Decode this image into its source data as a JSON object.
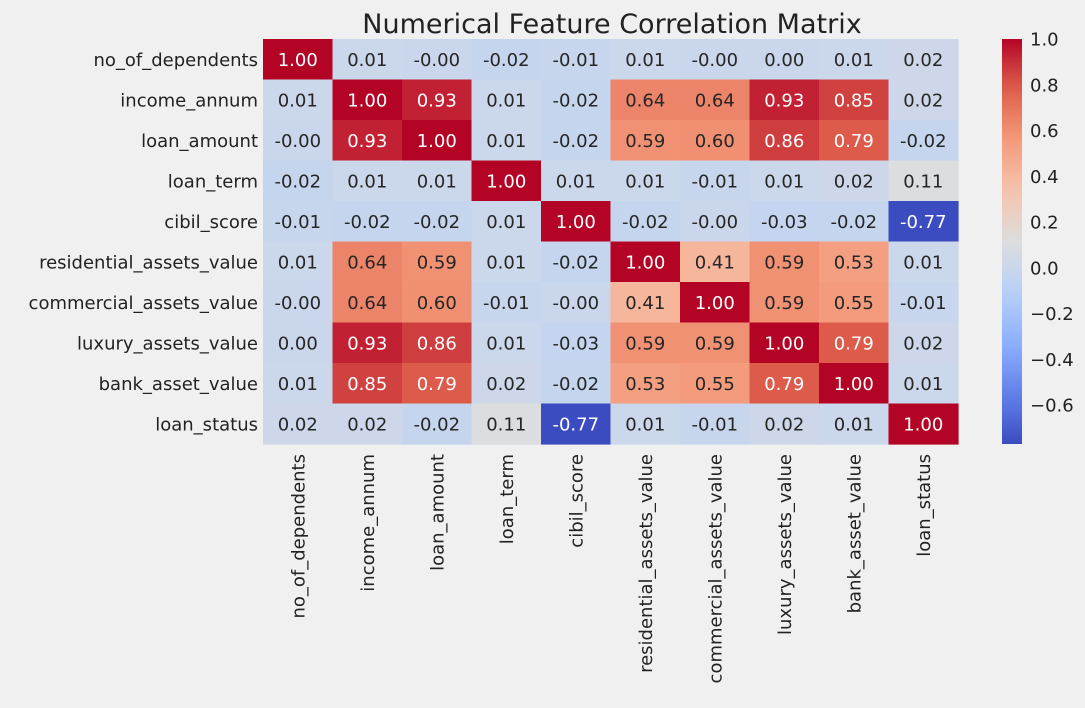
{
  "chart_data": {
    "type": "heatmap",
    "title": "Numerical Feature Correlation Matrix",
    "colormap": "coolwarm",
    "vmin": -0.77,
    "vmax": 1.0,
    "rows": [
      "no_of_dependents",
      "income_annum",
      "loan_amount",
      "loan_term",
      "cibil_score",
      "residential_assets_value",
      "commercial_assets_value",
      "luxury_assets_value",
      "bank_asset_value",
      "loan_status"
    ],
    "columns": [
      "no_of_dependents",
      "income_annum",
      "loan_amount",
      "loan_term",
      "cibil_score",
      "residential_assets_value",
      "commercial_assets_value",
      "luxury_assets_value",
      "bank_asset_value",
      "loan_status"
    ],
    "values": [
      [
        1.0,
        0.01,
        -0.0,
        -0.02,
        -0.01,
        0.01,
        -0.0,
        0.0,
        0.01,
        0.02
      ],
      [
        0.01,
        1.0,
        0.93,
        0.01,
        -0.02,
        0.64,
        0.64,
        0.93,
        0.85,
        0.02
      ],
      [
        -0.0,
        0.93,
        1.0,
        0.01,
        -0.02,
        0.59,
        0.6,
        0.86,
        0.79,
        -0.02
      ],
      [
        -0.02,
        0.01,
        0.01,
        1.0,
        0.01,
        0.01,
        -0.01,
        0.01,
        0.02,
        0.11
      ],
      [
        -0.01,
        -0.02,
        -0.02,
        0.01,
        1.0,
        -0.02,
        -0.0,
        -0.03,
        -0.02,
        -0.77
      ],
      [
        0.01,
        0.64,
        0.59,
        0.01,
        -0.02,
        1.0,
        0.41,
        0.59,
        0.53,
        0.01
      ],
      [
        -0.0,
        0.64,
        0.6,
        -0.01,
        -0.0,
        0.41,
        1.0,
        0.59,
        0.55,
        -0.01
      ],
      [
        0.0,
        0.93,
        0.86,
        0.01,
        -0.03,
        0.59,
        0.59,
        1.0,
        0.79,
        0.02
      ],
      [
        0.01,
        0.85,
        0.79,
        0.02,
        -0.02,
        0.53,
        0.55,
        0.79,
        1.0,
        0.01
      ],
      [
        0.02,
        0.02,
        -0.02,
        0.11,
        -0.77,
        0.01,
        -0.01,
        0.02,
        0.01,
        1.0
      ]
    ],
    "value_format": "2 decimals",
    "colorbar_ticks": [
      "1.0",
      "0.8",
      "0.6",
      "0.4",
      "0.2",
      "0.0",
      "−0.2",
      "−0.4",
      "−0.6"
    ],
    "colorbar_tick_values": [
      1.0,
      0.8,
      0.6,
      0.4,
      0.2,
      0.0,
      -0.2,
      -0.4,
      -0.6
    ],
    "grid": false
  }
}
